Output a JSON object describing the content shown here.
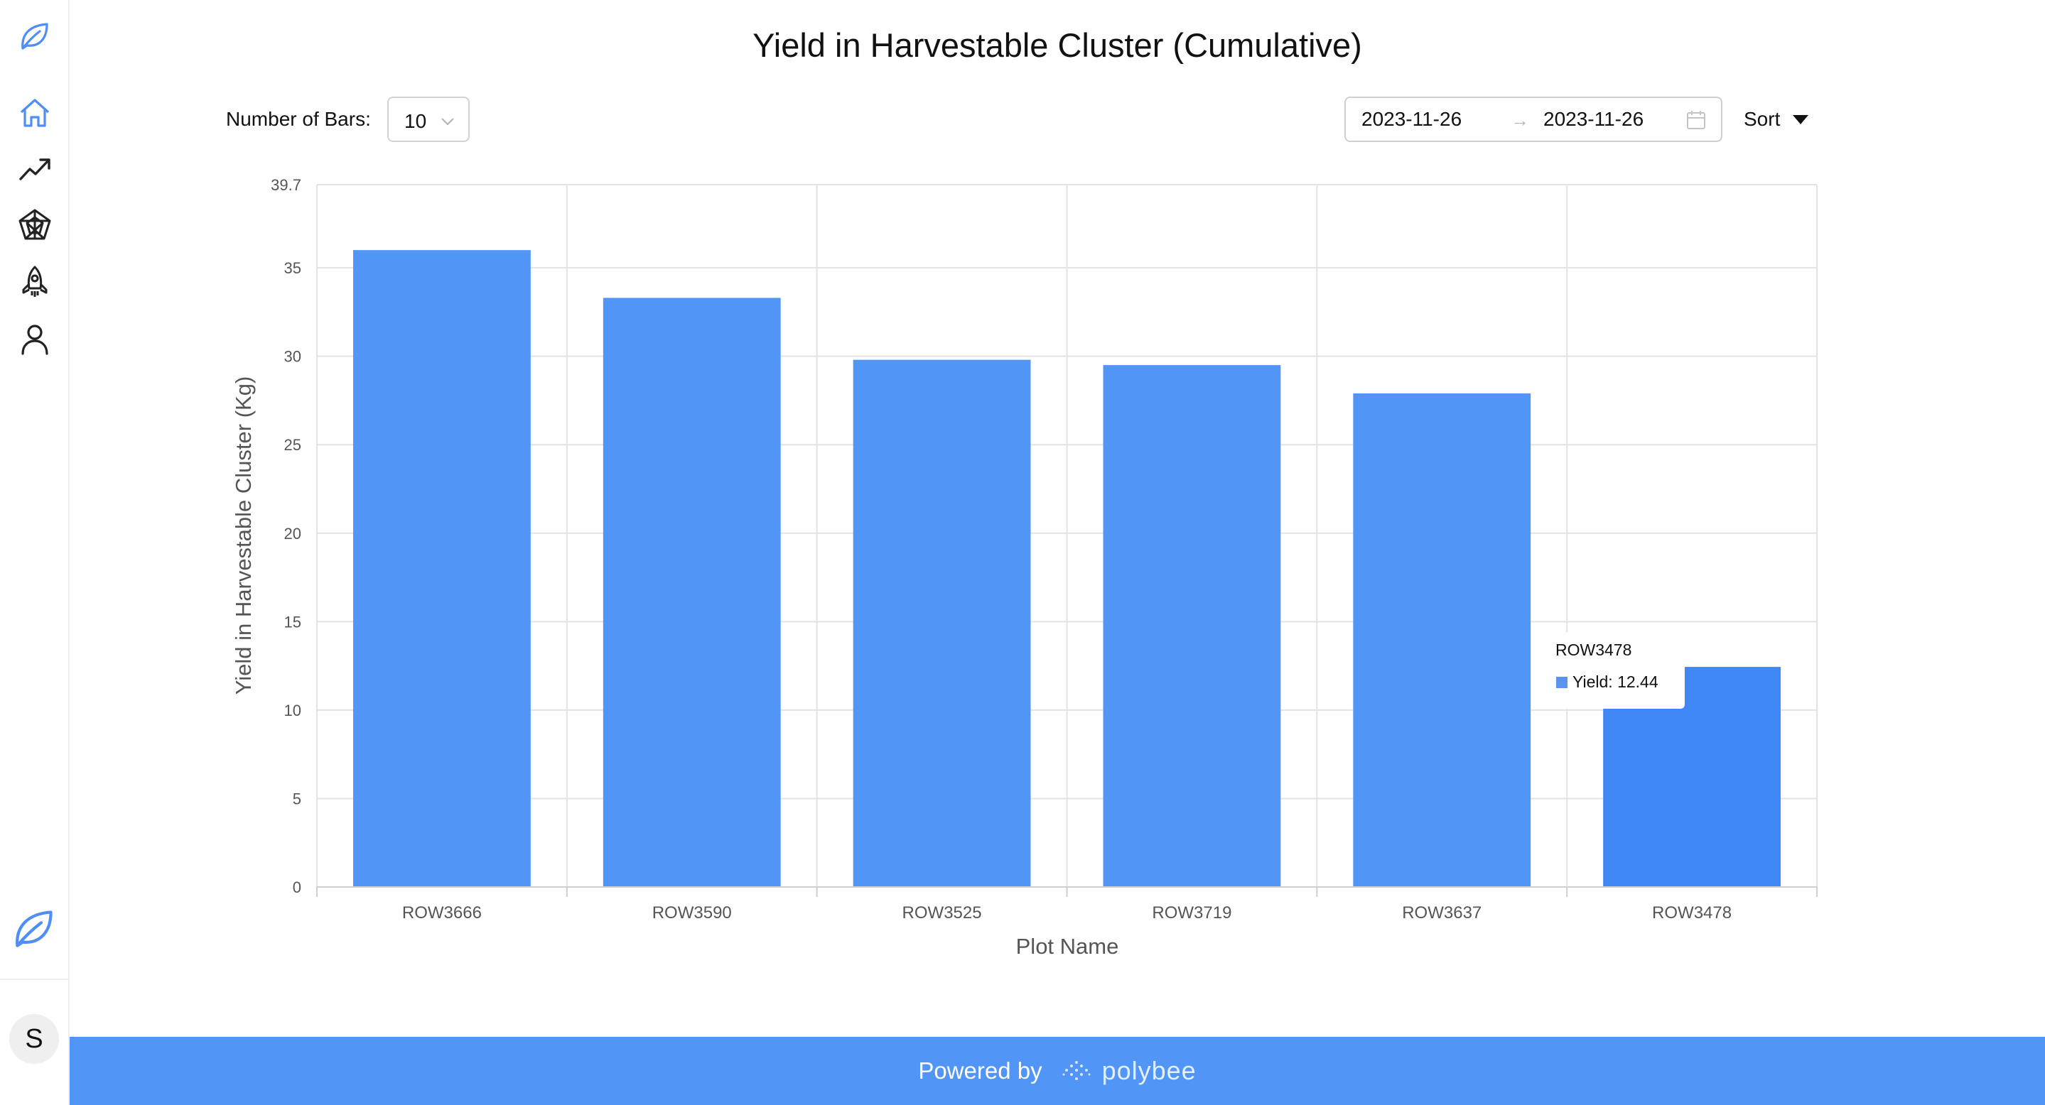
{
  "sidebar": {
    "top_logo_icon": "leaf-icon",
    "items": [
      {
        "name": "home",
        "icon": "home-icon"
      },
      {
        "name": "trends",
        "icon": "trending-up-icon"
      },
      {
        "name": "radar",
        "icon": "radar-chart-icon"
      },
      {
        "name": "launch",
        "icon": "rocket-icon"
      },
      {
        "name": "profile",
        "icon": "user-icon"
      }
    ],
    "bottom_logo_icon": "leaf-icon",
    "avatar_letter": "S"
  },
  "chart_title": "Yield in Harvestable Cluster (Cumulative)",
  "toolbar": {
    "bars_label": "Number of Bars:",
    "bars_value": "10",
    "date_start": "2023-11-26",
    "date_end": "2023-11-26",
    "date_separator": "→",
    "sort_label": "Sort"
  },
  "chart_data": {
    "type": "bar",
    "title": "Yield in Harvestable Cluster (Cumulative)",
    "xlabel": "Plot Name",
    "ylabel": "Yield in Harvestable Cluster (Kg)",
    "categories": [
      "ROW3666",
      "ROW3590",
      "ROW3525",
      "ROW3719",
      "ROW3637",
      "ROW3478"
    ],
    "series": [
      {
        "name": "Yield",
        "values": [
          36.0,
          33.3,
          29.8,
          29.5,
          27.9,
          12.44
        ]
      }
    ],
    "ylim": [
      0,
      39.7
    ],
    "y_ticks": [
      "0",
      "5",
      "10",
      "15",
      "20",
      "25",
      "30",
      "35",
      "39.7"
    ],
    "grid": true,
    "bar_color": "#5195f7",
    "highlight_color": "#3f87f5",
    "highlighted_index": 5
  },
  "tooltip": {
    "title": "ROW3478",
    "label": "Yield: 12.44"
  },
  "footer": {
    "powered_by": "Powered by",
    "brand": "polybee",
    "color": "#5195f7"
  }
}
